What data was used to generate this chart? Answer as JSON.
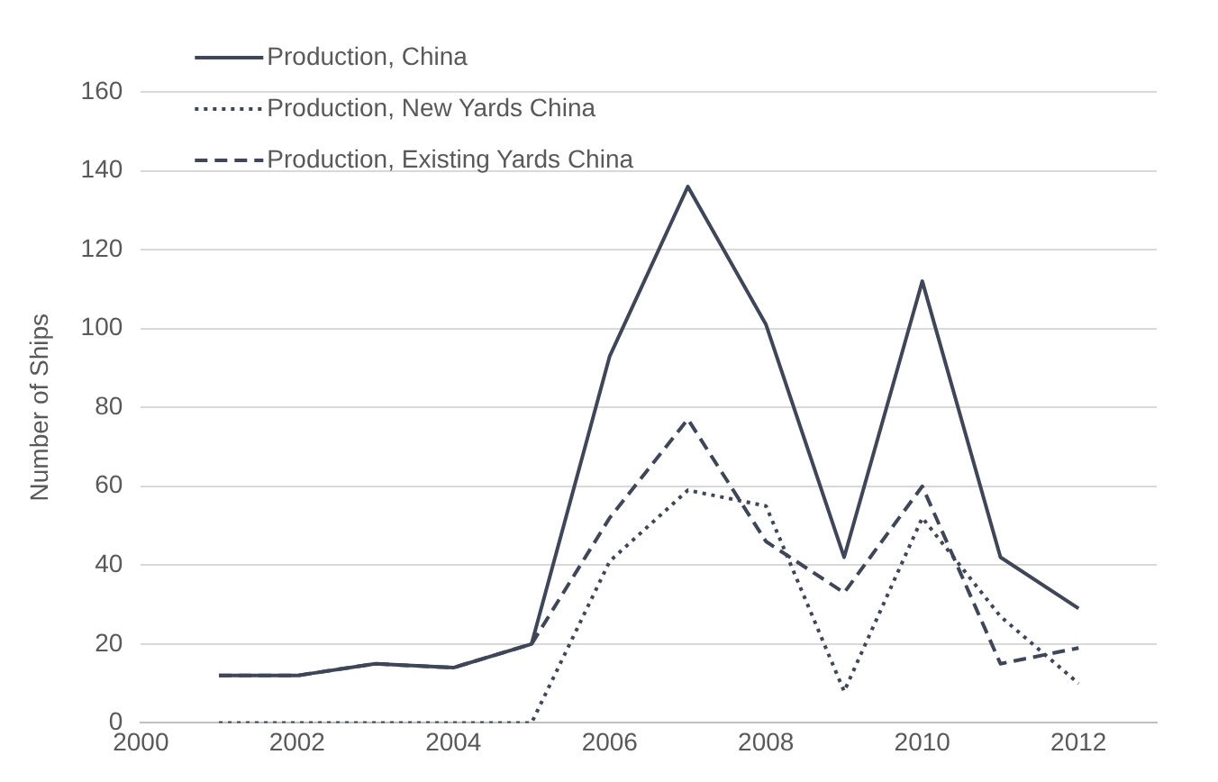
{
  "chart_data": {
    "type": "line",
    "ylabel": "Number of Ships",
    "x": [
      2001,
      2002,
      2003,
      2004,
      2005,
      2006,
      2007,
      2008,
      2009,
      2010,
      2011,
      2012
    ],
    "series": [
      {
        "name": "Production, China",
        "color": "#3e4658",
        "line_style": "solid",
        "values": [
          12,
          12,
          15,
          14,
          20,
          93,
          136,
          101,
          42,
          112,
          42,
          29
        ]
      },
      {
        "name": "Production, New Yards China",
        "color": "#3e4658",
        "line_style": "dotted",
        "values": [
          0,
          0,
          0,
          0,
          0,
          41,
          59,
          55,
          8,
          52,
          27,
          10
        ]
      },
      {
        "name": "Production, Existing Yards China",
        "color": "#3e4658",
        "line_style": "dashed",
        "values": [
          12,
          12,
          15,
          14,
          20,
          52,
          77,
          46,
          33,
          60,
          15,
          19
        ]
      }
    ],
    "xlim": [
      2000,
      2013
    ],
    "xticks": [
      2000,
      2002,
      2004,
      2006,
      2008,
      2010,
      2012
    ],
    "ylim": [
      0,
      160
    ],
    "yticks": [
      0,
      20,
      40,
      60,
      80,
      100,
      120,
      140,
      160
    ],
    "grid": "y",
    "legend": "top left",
    "marker": "none"
  }
}
